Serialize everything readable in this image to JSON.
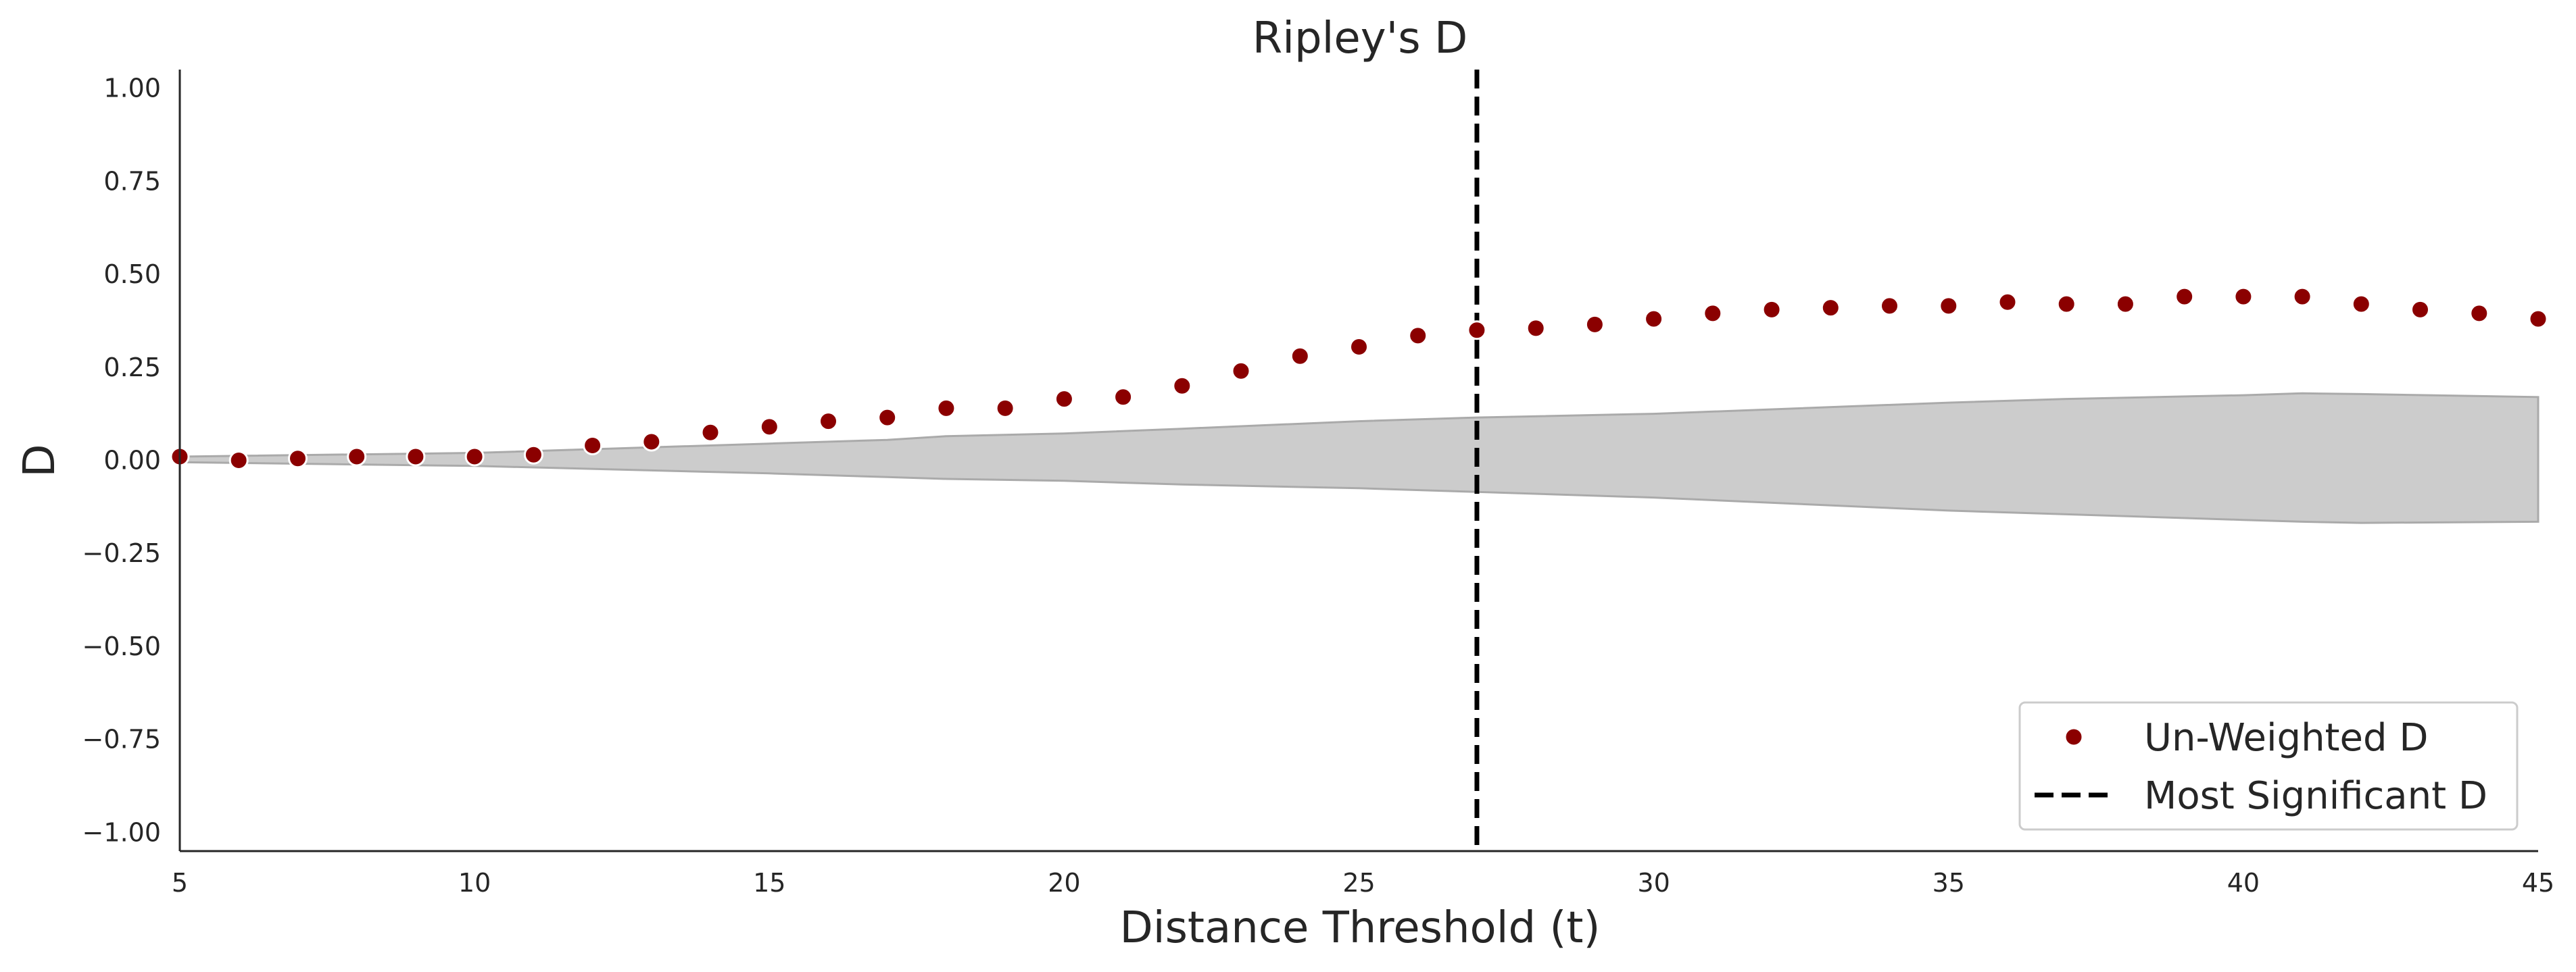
{
  "chart_data": {
    "type": "scatter",
    "title": "Ripley's D",
    "xlabel": "Distance Threshold (t)",
    "ylabel": "D",
    "xlim": [
      5,
      45
    ],
    "ylim": [
      -1.05,
      1.05
    ],
    "xticks": [
      5,
      10,
      15,
      20,
      25,
      30,
      35,
      40,
      45
    ],
    "xtick_labels": [
      "5",
      "10",
      "15",
      "20",
      "25",
      "30",
      "35",
      "40",
      "45"
    ],
    "yticks": [
      1.0,
      0.75,
      0.5,
      0.25,
      0.0,
      -0.25,
      -0.5,
      -0.75,
      -1.0
    ],
    "ytick_labels": [
      "1.00",
      "0.75",
      "0.50",
      "0.25",
      "0.00",
      "−0.25",
      "−0.50",
      "−0.75",
      "−1.00"
    ],
    "grid": false,
    "legend_position": "bottom-right",
    "series": [
      {
        "name": "Un-Weighted D",
        "kind": "scatter",
        "color": "#8b0000",
        "x": [
          5,
          6,
          7,
          8,
          9,
          10,
          11,
          12,
          13,
          14,
          15,
          16,
          17,
          18,
          19,
          20,
          21,
          22,
          23,
          24,
          25,
          26,
          27,
          28,
          29,
          30,
          31,
          32,
          33,
          34,
          35,
          36,
          37,
          38,
          39,
          40,
          41,
          42,
          43,
          44,
          45
        ],
        "y": [
          0.01,
          0.0,
          0.005,
          0.01,
          0.01,
          0.01,
          0.015,
          0.04,
          0.05,
          0.075,
          0.09,
          0.105,
          0.115,
          0.14,
          0.14,
          0.165,
          0.17,
          0.2,
          0.24,
          0.28,
          0.305,
          0.335,
          0.35,
          0.355,
          0.365,
          0.38,
          0.395,
          0.405,
          0.41,
          0.415,
          0.415,
          0.425,
          0.42,
          0.42,
          0.44,
          0.44,
          0.44,
          0.42,
          0.405,
          0.395,
          0.38
        ]
      },
      {
        "name": "Most Significant D",
        "kind": "vline",
        "color": "#000000",
        "x": 27
      }
    ],
    "envelope": {
      "color": "#cccccc",
      "edge_color": "#aaaaaa",
      "x": [
        5,
        10,
        15,
        17,
        18,
        20,
        22,
        25,
        27,
        30,
        35,
        37,
        40,
        41,
        42,
        45
      ],
      "upper": [
        0.01,
        0.02,
        0.045,
        0.055,
        0.065,
        0.072,
        0.085,
        0.105,
        0.115,
        0.125,
        0.155,
        0.165,
        0.175,
        0.18,
        0.178,
        0.17
      ],
      "lower": [
        -0.005,
        -0.015,
        -0.035,
        -0.045,
        -0.05,
        -0.055,
        -0.065,
        -0.075,
        -0.085,
        -0.1,
        -0.135,
        -0.145,
        -0.16,
        -0.165,
        -0.168,
        -0.165
      ]
    }
  }
}
